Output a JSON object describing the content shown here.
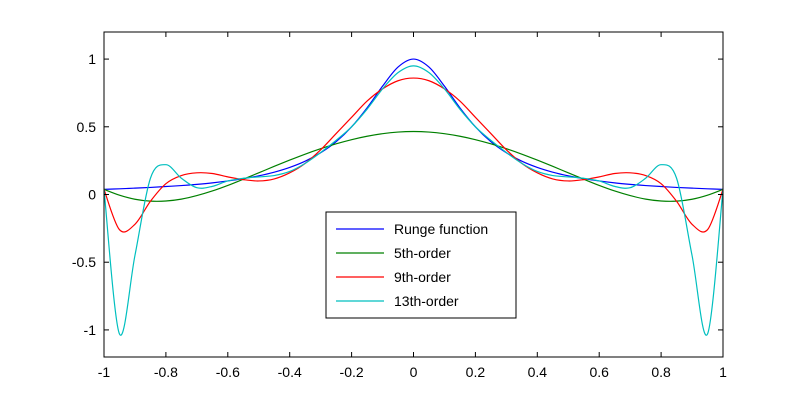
{
  "chart_data": {
    "type": "line",
    "title": "",
    "xlabel": "",
    "ylabel": "",
    "xlim": [
      -1,
      1
    ],
    "ylim": [
      -1.2,
      1.2
    ],
    "grid": false,
    "legend_placement": "lower-center",
    "x_ticks": [
      -1,
      -0.8,
      -0.6,
      -0.4,
      -0.2,
      0,
      0.2,
      0.4,
      0.6,
      0.8,
      1
    ],
    "x_tick_labels": [
      "-1",
      "-0.8",
      "-0.6",
      "-0.4",
      "-0.2",
      "0",
      "0.2",
      "0.4",
      "0.6",
      "0.8",
      "1"
    ],
    "y_ticks": [
      1,
      0.5,
      0,
      -0.5,
      -1
    ],
    "y_tick_labels": [
      "1",
      "0.5",
      "0",
      "-0.5",
      "-1"
    ],
    "x": [
      -1,
      -0.95,
      -0.9,
      -0.85,
      -0.8,
      -0.75,
      -0.7,
      -0.65,
      -0.6,
      -0.55,
      -0.5,
      -0.45,
      -0.4,
      -0.35,
      -0.3,
      -0.25,
      -0.2,
      -0.15,
      -0.1,
      -0.05,
      0,
      0.05,
      0.1,
      0.15,
      0.2,
      0.25,
      0.3,
      0.35,
      0.4,
      0.45,
      0.5,
      0.55,
      0.6,
      0.65,
      0.7,
      0.75,
      0.8,
      0.85,
      0.9,
      0.95,
      1
    ],
    "series": [
      {
        "name": "Runge function",
        "color": "#0000ff",
        "values": [
          0.038,
          0.042,
          0.047,
          0.052,
          0.059,
          0.066,
          0.075,
          0.086,
          0.1,
          0.117,
          0.138,
          0.165,
          0.2,
          0.246,
          0.308,
          0.39,
          0.5,
          0.64,
          0.8,
          0.941,
          1,
          0.941,
          0.8,
          0.64,
          0.5,
          0.39,
          0.308,
          0.246,
          0.2,
          0.165,
          0.138,
          0.117,
          0.1,
          0.086,
          0.075,
          0.066,
          0.059,
          0.052,
          0.047,
          0.042,
          0.038
        ]
      },
      {
        "name": "5th-order",
        "color": "#008000",
        "values": [
          0.038,
          -0.005,
          -0.035,
          -0.049,
          -0.048,
          -0.034,
          -0.008,
          0.026,
          0.067,
          0.113,
          0.16,
          0.208,
          0.254,
          0.298,
          0.338,
          0.374,
          0.405,
          0.43,
          0.449,
          0.461,
          0.465,
          0.461,
          0.449,
          0.43,
          0.405,
          0.374,
          0.338,
          0.298,
          0.254,
          0.208,
          0.16,
          0.113,
          0.067,
          0.026,
          -0.008,
          -0.034,
          -0.048,
          -0.049,
          -0.035,
          -0.005,
          0.038
        ]
      },
      {
        "name": "9th-order",
        "color": "#ff0000",
        "values": [
          0.038,
          -0.26,
          -0.22,
          -0.05,
          0.08,
          0.14,
          0.16,
          0.155,
          0.13,
          0.11,
          0.1,
          0.115,
          0.16,
          0.23,
          0.33,
          0.45,
          0.57,
          0.69,
          0.78,
          0.84,
          0.86,
          0.84,
          0.78,
          0.69,
          0.57,
          0.45,
          0.33,
          0.23,
          0.16,
          0.115,
          0.1,
          0.11,
          0.13,
          0.155,
          0.16,
          0.14,
          0.08,
          -0.05,
          -0.22,
          -0.26,
          0.038
        ]
      },
      {
        "name": "13th-order",
        "color": "#00bfbf",
        "values": [
          0.038,
          -1.03,
          -0.45,
          0.12,
          0.22,
          0.12,
          0.05,
          0.06,
          0.1,
          0.12,
          0.13,
          0.14,
          0.17,
          0.23,
          0.31,
          0.4,
          0.5,
          0.63,
          0.78,
          0.9,
          0.95,
          0.9,
          0.78,
          0.63,
          0.5,
          0.4,
          0.31,
          0.23,
          0.17,
          0.14,
          0.13,
          0.12,
          0.1,
          0.06,
          0.05,
          0.12,
          0.22,
          0.12,
          -0.45,
          -1.03,
          0.038
        ]
      }
    ]
  }
}
